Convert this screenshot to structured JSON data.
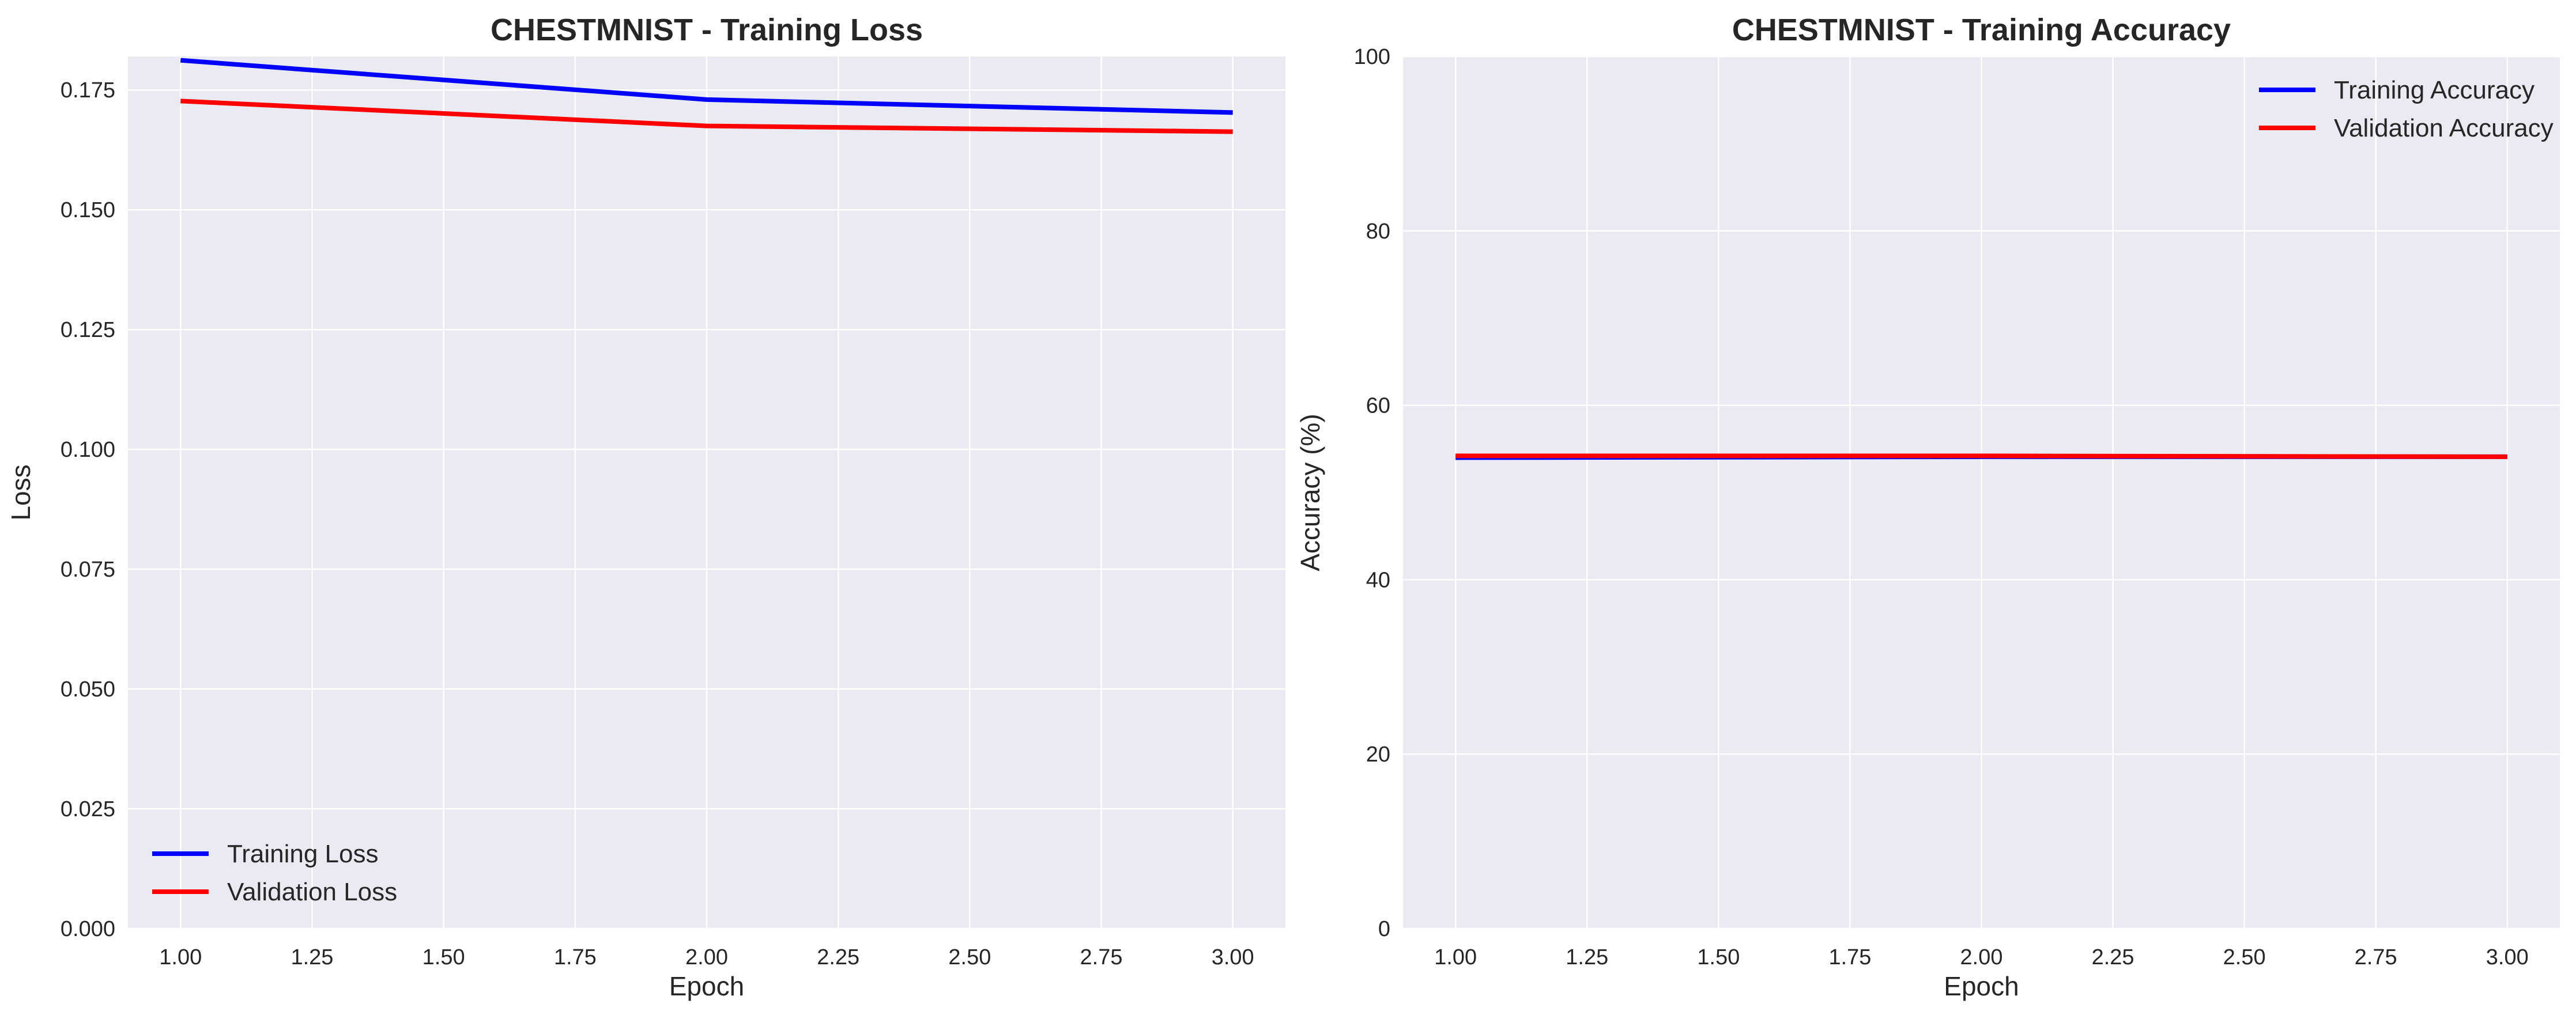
{
  "chart_data": [
    {
      "type": "line",
      "title": "CHESTMNIST - Training Loss",
      "xlabel": "Epoch",
      "ylabel": "Loss",
      "xlim": [
        0.9,
        3.1
      ],
      "ylim": [
        0.0,
        0.182
      ],
      "xticks": [
        1.0,
        1.25,
        1.5,
        1.75,
        2.0,
        2.25,
        2.5,
        2.75,
        3.0
      ],
      "xtick_labels": [
        "1.00",
        "1.25",
        "1.50",
        "1.75",
        "2.00",
        "2.25",
        "2.50",
        "2.75",
        "3.00"
      ],
      "yticks": [
        0.0,
        0.025,
        0.05,
        0.075,
        0.1,
        0.125,
        0.15,
        0.175
      ],
      "ytick_labels": [
        "0.000",
        "0.025",
        "0.050",
        "0.075",
        "0.100",
        "0.125",
        "0.150",
        "0.175"
      ],
      "grid": true,
      "legend_position": "lower left",
      "x": [
        1,
        2,
        3
      ],
      "series": [
        {
          "name": "Training Loss",
          "color": "#0000ff",
          "values": [
            0.1812,
            0.173,
            0.1703
          ]
        },
        {
          "name": "Validation Loss",
          "color": "#ff0000",
          "values": [
            0.1727,
            0.1675,
            0.1663
          ]
        }
      ]
    },
    {
      "type": "line",
      "title": "CHESTMNIST - Training Accuracy",
      "xlabel": "Epoch",
      "ylabel": "Accuracy (%)",
      "xlim": [
        0.9,
        3.1
      ],
      "ylim": [
        0,
        100
      ],
      "xticks": [
        1.0,
        1.25,
        1.5,
        1.75,
        2.0,
        2.25,
        2.5,
        2.75,
        3.0
      ],
      "xtick_labels": [
        "1.00",
        "1.25",
        "1.50",
        "1.75",
        "2.00",
        "2.25",
        "2.50",
        "2.75",
        "3.00"
      ],
      "yticks": [
        0,
        20,
        40,
        60,
        80,
        100
      ],
      "ytick_labels": [
        "0",
        "20",
        "40",
        "60",
        "80",
        "100"
      ],
      "grid": true,
      "legend_position": "upper right",
      "x": [
        1,
        2,
        3
      ],
      "series": [
        {
          "name": "Training Accuracy",
          "color": "#0000ff",
          "values": [
            54.0,
            54.1,
            54.1
          ]
        },
        {
          "name": "Validation Accuracy",
          "color": "#ff0000",
          "values": [
            54.2,
            54.2,
            54.1
          ]
        }
      ]
    }
  ],
  "style": {
    "axes_background": "#eaeaf2",
    "grid_color": "#ffffff",
    "text_color": "#262626"
  }
}
